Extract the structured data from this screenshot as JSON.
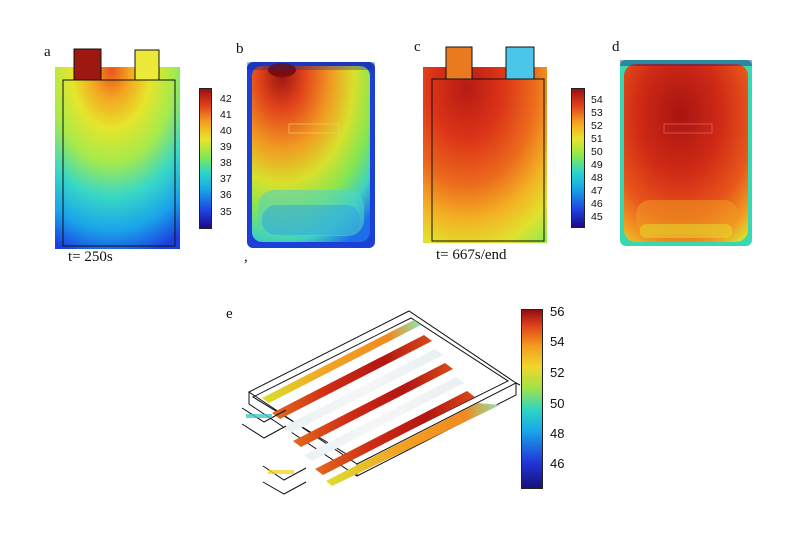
{
  "panels": {
    "a": {
      "letter": "a",
      "caption": "t= 250s"
    },
    "b": {
      "letter": "b",
      "mark": ","
    },
    "c": {
      "letter": "c",
      "caption": "t= 667s/end"
    },
    "d": {
      "letter": "d"
    },
    "e": {
      "letter": "e"
    }
  },
  "colorbars": {
    "first": {
      "ticks": [
        "42",
        "41",
        "40",
        "39",
        "38",
        "37",
        "36",
        "35"
      ]
    },
    "second": {
      "ticks": [
        "54",
        "53",
        "52",
        "51",
        "50",
        "49",
        "48",
        "47",
        "46",
        "45"
      ]
    },
    "third": {
      "ticks": [
        "56",
        "54",
        "52",
        "50",
        "48",
        "46"
      ]
    }
  },
  "colors": {
    "hot": "#9a0f10",
    "warm": "#e2401c",
    "mid": "#e9e32a",
    "cool": "#16a8e8",
    "cold": "#1f3fe0"
  }
}
